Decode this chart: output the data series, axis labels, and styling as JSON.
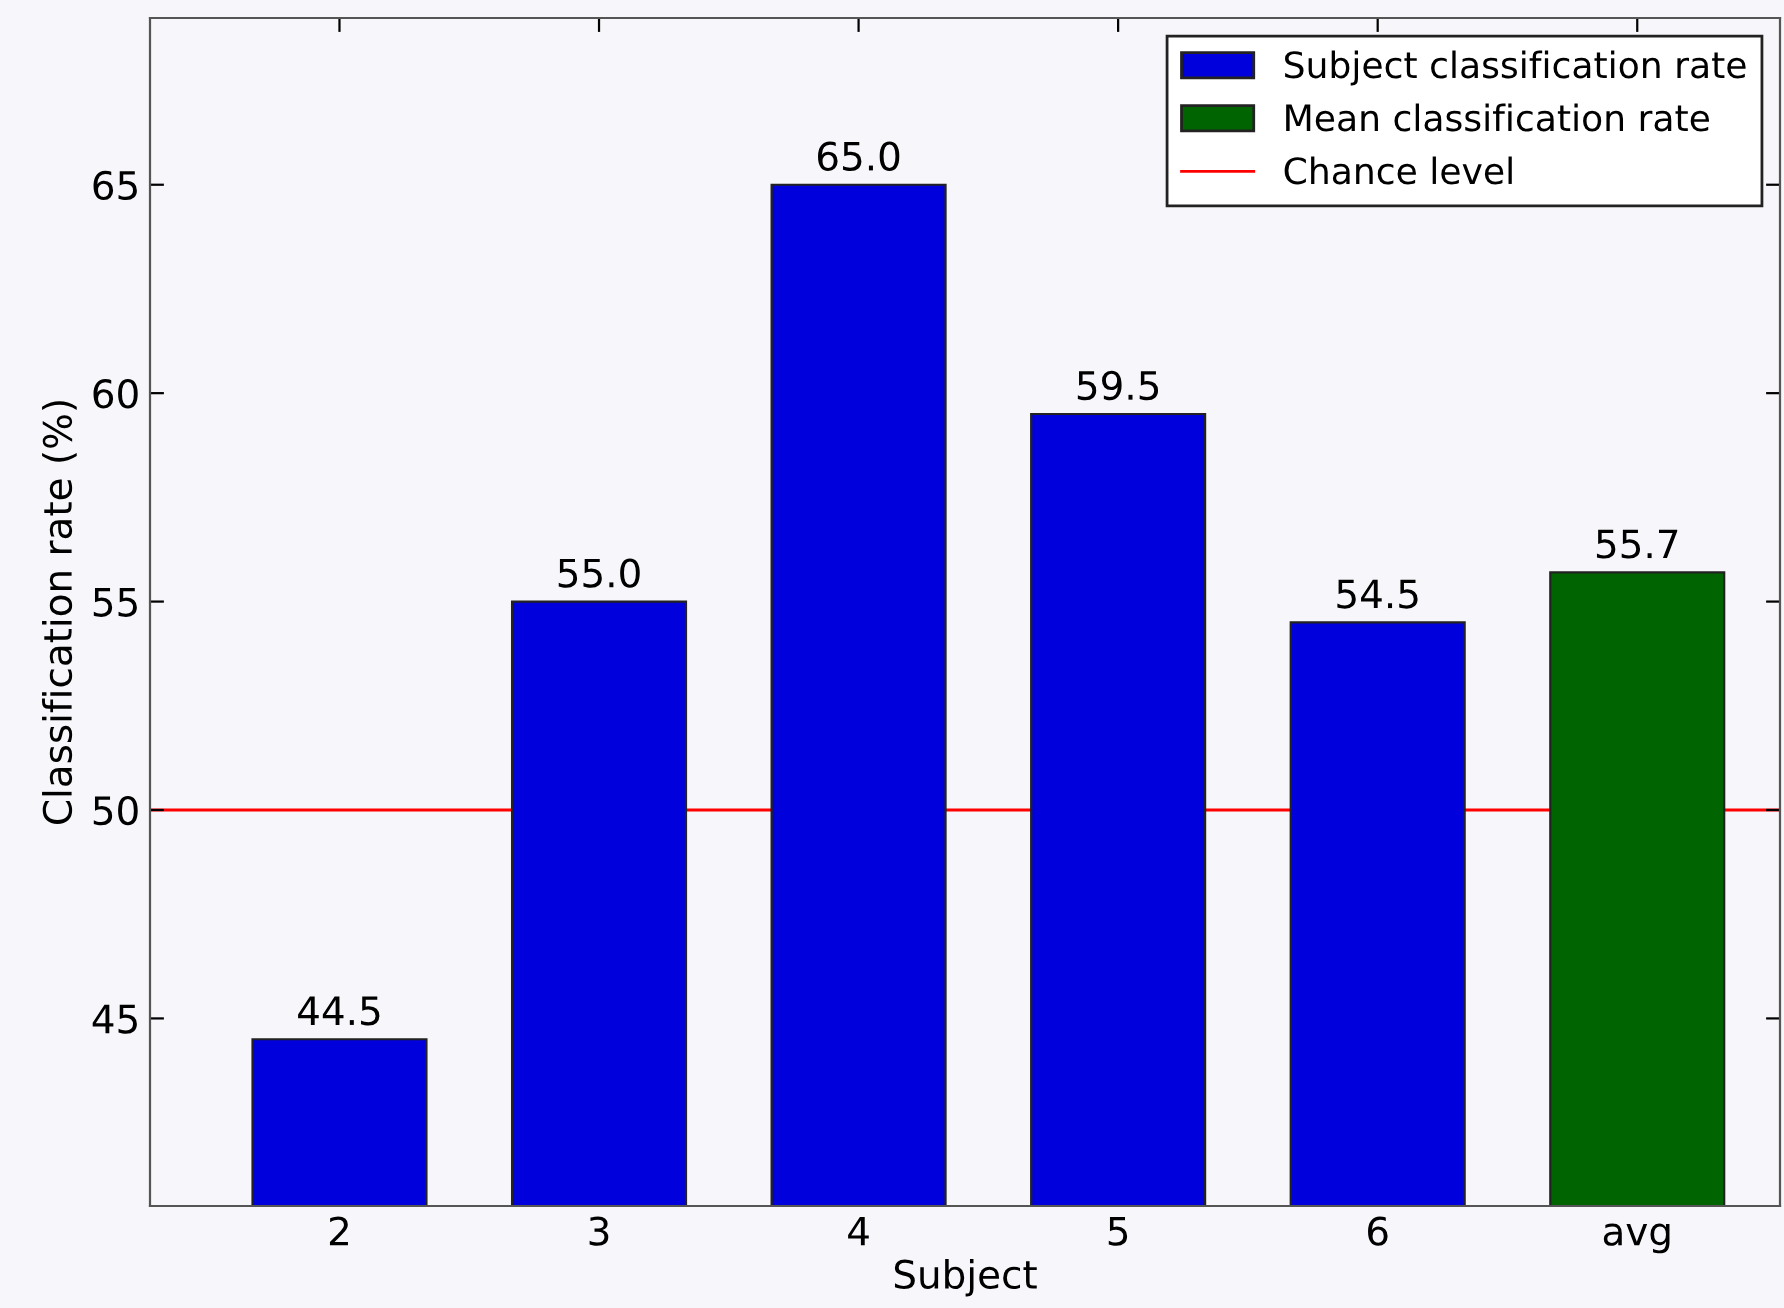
{
  "chart_data": {
    "type": "bar",
    "xlabel": "Subject",
    "ylabel": "Classification rate (%)",
    "categories": [
      "2",
      "3",
      "4",
      "5",
      "6",
      "avg"
    ],
    "series": [
      {
        "name": "Subject classification rate",
        "color": "#0000dd",
        "values": [
          44.5,
          55.0,
          65.0,
          59.5,
          54.5,
          null
        ],
        "value_labels": [
          "44.5",
          "55.0",
          "65.0",
          "59.5",
          "54.5",
          null
        ]
      },
      {
        "name": "Mean classification rate",
        "color": "#006400",
        "values": [
          null,
          null,
          null,
          null,
          null,
          55.7
        ],
        "value_labels": [
          null,
          null,
          null,
          null,
          null,
          "55.7"
        ]
      }
    ],
    "ref_lines": [
      {
        "axis": "y",
        "value": 50,
        "label": "Chance level",
        "color": "#ff0000"
      }
    ],
    "ylim": [
      40.5,
      69
    ],
    "yticks": [
      45,
      50,
      55,
      60,
      65
    ],
    "grid": false,
    "legend": "top right"
  }
}
